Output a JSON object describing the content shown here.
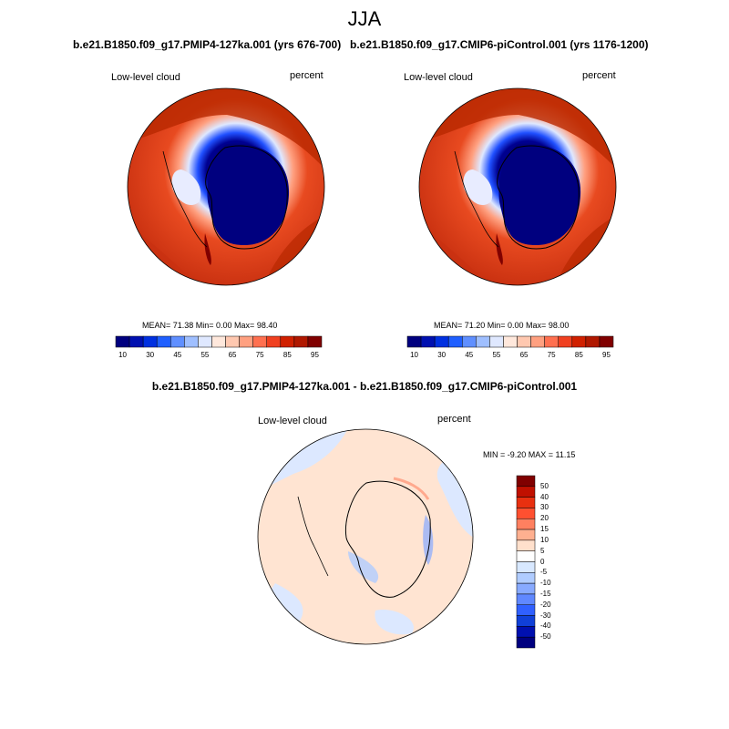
{
  "figure": {
    "season": "JJA",
    "panel_left": {
      "case": "b.e21.B1850.f09_g17.PMIP4-127ka.001 (yrs 676-700)",
      "variable": "Low-level cloud",
      "units": "percent",
      "stats": "MEAN=  71.38  Min=   0.00  Max=  98.40"
    },
    "panel_right": {
      "case": "b.e21.B1850.f09_g17.CMIP6-piControl.001 (yrs 1176-1200)",
      "variable": "Low-level cloud",
      "units": "percent",
      "stats": "MEAN=  71.20  Min=   0.00  Max=  98.00"
    },
    "panel_diff": {
      "title": "b.e21.B1850.f09_g17.PMIP4-127ka.001 - b.e21.B1850.f09_g17.CMIP6-piControl.001",
      "variable": "Low-level cloud",
      "units": "percent",
      "stats": "MIN =  -9.20 MAX =  11.15"
    }
  },
  "colorbar_abs": {
    "colors": [
      "#00007f",
      "#0010b0",
      "#0030e0",
      "#1f5fff",
      "#5f8fff",
      "#9fbfff",
      "#dfe8ff",
      "#ffe8dc",
      "#ffc8b0",
      "#ffa080",
      "#ff7050",
      "#f04020",
      "#d02000",
      "#b01800",
      "#800000"
    ],
    "ticks": [
      "10",
      "30",
      "45",
      "55",
      "65",
      "75",
      "85",
      "95"
    ]
  },
  "colorbar_diff": {
    "colors": [
      "#800000",
      "#c01000",
      "#e83010",
      "#ff5030",
      "#ff8060",
      "#ffb090",
      "#ffe0cc",
      "#d8e8ff",
      "#b0ccff",
      "#88aaff",
      "#6088ff",
      "#3060ff",
      "#1040d8",
      "#0010b0",
      "#00007f"
    ],
    "ticks": [
      "50",
      "40",
      "30",
      "20",
      "15",
      "10",
      "5",
      "0",
      "-5",
      "-10",
      "-15",
      "-20",
      "-30",
      "-40",
      "-50"
    ]
  }
}
